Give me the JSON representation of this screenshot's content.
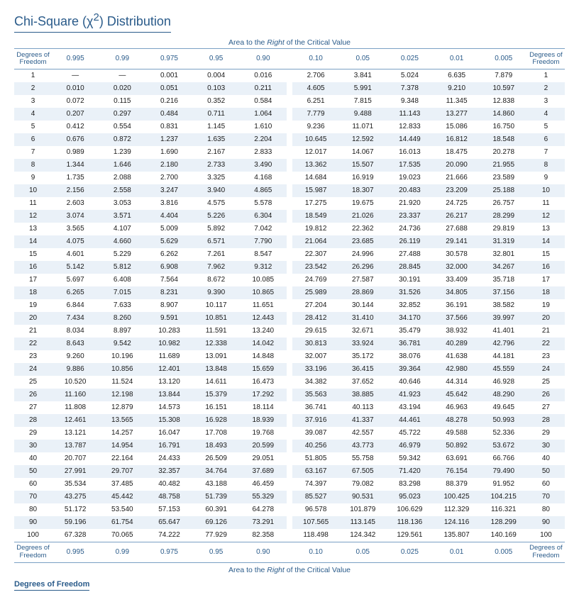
{
  "title_html": "Chi-Square (χ<sup>2</sup>) Distribution",
  "caption_html": "Area to the <em>Right</em> of the Critical Value",
  "df_header_html": "Degrees of<br>Freedom",
  "bottom_label": "Degrees of Freedom",
  "colors": {
    "heading": "#2a5b8a",
    "row_stripe": "#eaf1f8",
    "rule": "#7aa0c4",
    "text": "#1a1a1a"
  },
  "columns": [
    "0.995",
    "0.99",
    "0.975",
    "0.95",
    "0.90",
    "0.10",
    "0.05",
    "0.025",
    "0.01",
    "0.005"
  ],
  "rows": [
    {
      "df": "1",
      "v": [
        "—",
        "—",
        "0.001",
        "0.004",
        "0.016",
        "2.706",
        "3.841",
        "5.024",
        "6.635",
        "7.879"
      ]
    },
    {
      "df": "2",
      "v": [
        "0.010",
        "0.020",
        "0.051",
        "0.103",
        "0.211",
        "4.605",
        "5.991",
        "7.378",
        "9.210",
        "10.597"
      ]
    },
    {
      "df": "3",
      "v": [
        "0.072",
        "0.115",
        "0.216",
        "0.352",
        "0.584",
        "6.251",
        "7.815",
        "9.348",
        "11.345",
        "12.838"
      ]
    },
    {
      "df": "4",
      "v": [
        "0.207",
        "0.297",
        "0.484",
        "0.711",
        "1.064",
        "7.779",
        "9.488",
        "11.143",
        "13.277",
        "14.860"
      ]
    },
    {
      "df": "5",
      "v": [
        "0.412",
        "0.554",
        "0.831",
        "1.145",
        "1.610",
        "9.236",
        "11.071",
        "12.833",
        "15.086",
        "16.750"
      ]
    },
    {
      "df": "6",
      "v": [
        "0.676",
        "0.872",
        "1.237",
        "1.635",
        "2.204",
        "10.645",
        "12.592",
        "14.449",
        "16.812",
        "18.548"
      ]
    },
    {
      "df": "7",
      "v": [
        "0.989",
        "1.239",
        "1.690",
        "2.167",
        "2.833",
        "12.017",
        "14.067",
        "16.013",
        "18.475",
        "20.278"
      ]
    },
    {
      "df": "8",
      "v": [
        "1.344",
        "1.646",
        "2.180",
        "2.733",
        "3.490",
        "13.362",
        "15.507",
        "17.535",
        "20.090",
        "21.955"
      ]
    },
    {
      "df": "9",
      "v": [
        "1.735",
        "2.088",
        "2.700",
        "3.325",
        "4.168",
        "14.684",
        "16.919",
        "19.023",
        "21.666",
        "23.589"
      ]
    },
    {
      "df": "10",
      "v": [
        "2.156",
        "2.558",
        "3.247",
        "3.940",
        "4.865",
        "15.987",
        "18.307",
        "20.483",
        "23.209",
        "25.188"
      ]
    },
    {
      "df": "11",
      "v": [
        "2.603",
        "3.053",
        "3.816",
        "4.575",
        "5.578",
        "17.275",
        "19.675",
        "21.920",
        "24.725",
        "26.757"
      ]
    },
    {
      "df": "12",
      "v": [
        "3.074",
        "3.571",
        "4.404",
        "5.226",
        "6.304",
        "18.549",
        "21.026",
        "23.337",
        "26.217",
        "28.299"
      ]
    },
    {
      "df": "13",
      "v": [
        "3.565",
        "4.107",
        "5.009",
        "5.892",
        "7.042",
        "19.812",
        "22.362",
        "24.736",
        "27.688",
        "29.819"
      ]
    },
    {
      "df": "14",
      "v": [
        "4.075",
        "4.660",
        "5.629",
        "6.571",
        "7.790",
        "21.064",
        "23.685",
        "26.119",
        "29.141",
        "31.319"
      ]
    },
    {
      "df": "15",
      "v": [
        "4.601",
        "5.229",
        "6.262",
        "7.261",
        "8.547",
        "22.307",
        "24.996",
        "27.488",
        "30.578",
        "32.801"
      ]
    },
    {
      "df": "16",
      "v": [
        "5.142",
        "5.812",
        "6.908",
        "7.962",
        "9.312",
        "23.542",
        "26.296",
        "28.845",
        "32.000",
        "34.267"
      ]
    },
    {
      "df": "17",
      "v": [
        "5.697",
        "6.408",
        "7.564",
        "8.672",
        "10.085",
        "24.769",
        "27.587",
        "30.191",
        "33.409",
        "35.718"
      ]
    },
    {
      "df": "18",
      "v": [
        "6.265",
        "7.015",
        "8.231",
        "9.390",
        "10.865",
        "25.989",
        "28.869",
        "31.526",
        "34.805",
        "37.156"
      ]
    },
    {
      "df": "19",
      "v": [
        "6.844",
        "7.633",
        "8.907",
        "10.117",
        "11.651",
        "27.204",
        "30.144",
        "32.852",
        "36.191",
        "38.582"
      ]
    },
    {
      "df": "20",
      "v": [
        "7.434",
        "8.260",
        "9.591",
        "10.851",
        "12.443",
        "28.412",
        "31.410",
        "34.170",
        "37.566",
        "39.997"
      ]
    },
    {
      "df": "21",
      "v": [
        "8.034",
        "8.897",
        "10.283",
        "11.591",
        "13.240",
        "29.615",
        "32.671",
        "35.479",
        "38.932",
        "41.401"
      ]
    },
    {
      "df": "22",
      "v": [
        "8.643",
        "9.542",
        "10.982",
        "12.338",
        "14.042",
        "30.813",
        "33.924",
        "36.781",
        "40.289",
        "42.796"
      ]
    },
    {
      "df": "23",
      "v": [
        "9.260",
        "10.196",
        "11.689",
        "13.091",
        "14.848",
        "32.007",
        "35.172",
        "38.076",
        "41.638",
        "44.181"
      ]
    },
    {
      "df": "24",
      "v": [
        "9.886",
        "10.856",
        "12.401",
        "13.848",
        "15.659",
        "33.196",
        "36.415",
        "39.364",
        "42.980",
        "45.559"
      ]
    },
    {
      "df": "25",
      "v": [
        "10.520",
        "11.524",
        "13.120",
        "14.611",
        "16.473",
        "34.382",
        "37.652",
        "40.646",
        "44.314",
        "46.928"
      ]
    },
    {
      "df": "26",
      "v": [
        "11.160",
        "12.198",
        "13.844",
        "15.379",
        "17.292",
        "35.563",
        "38.885",
        "41.923",
        "45.642",
        "48.290"
      ]
    },
    {
      "df": "27",
      "v": [
        "11.808",
        "12.879",
        "14.573",
        "16.151",
        "18.114",
        "36.741",
        "40.113",
        "43.194",
        "46.963",
        "49.645"
      ]
    },
    {
      "df": "28",
      "v": [
        "12.461",
        "13.565",
        "15.308",
        "16.928",
        "18.939",
        "37.916",
        "41.337",
        "44.461",
        "48.278",
        "50.993"
      ]
    },
    {
      "df": "29",
      "v": [
        "13.121",
        "14.257",
        "16.047",
        "17.708",
        "19.768",
        "39.087",
        "42.557",
        "45.722",
        "49.588",
        "52.336"
      ]
    },
    {
      "df": "30",
      "v": [
        "13.787",
        "14.954",
        "16.791",
        "18.493",
        "20.599",
        "40.256",
        "43.773",
        "46.979",
        "50.892",
        "53.672"
      ]
    },
    {
      "df": "40",
      "v": [
        "20.707",
        "22.164",
        "24.433",
        "26.509",
        "29.051",
        "51.805",
        "55.758",
        "59.342",
        "63.691",
        "66.766"
      ]
    },
    {
      "df": "50",
      "v": [
        "27.991",
        "29.707",
        "32.357",
        "34.764",
        "37.689",
        "63.167",
        "67.505",
        "71.420",
        "76.154",
        "79.490"
      ]
    },
    {
      "df": "60",
      "v": [
        "35.534",
        "37.485",
        "40.482",
        "43.188",
        "46.459",
        "74.397",
        "79.082",
        "83.298",
        "88.379",
        "91.952"
      ]
    },
    {
      "df": "70",
      "v": [
        "43.275",
        "45.442",
        "48.758",
        "51.739",
        "55.329",
        "85.527",
        "90.531",
        "95.023",
        "100.425",
        "104.215"
      ]
    },
    {
      "df": "80",
      "v": [
        "51.172",
        "53.540",
        "57.153",
        "60.391",
        "64.278",
        "96.578",
        "101.879",
        "106.629",
        "112.329",
        "116.321"
      ]
    },
    {
      "df": "90",
      "v": [
        "59.196",
        "61.754",
        "65.647",
        "69.126",
        "73.291",
        "107.565",
        "113.145",
        "118.136",
        "124.116",
        "128.299"
      ]
    },
    {
      "df": "100",
      "v": [
        "67.328",
        "70.065",
        "74.222",
        "77.929",
        "82.358",
        "118.498",
        "124.342",
        "129.561",
        "135.807",
        "140.169"
      ]
    }
  ]
}
